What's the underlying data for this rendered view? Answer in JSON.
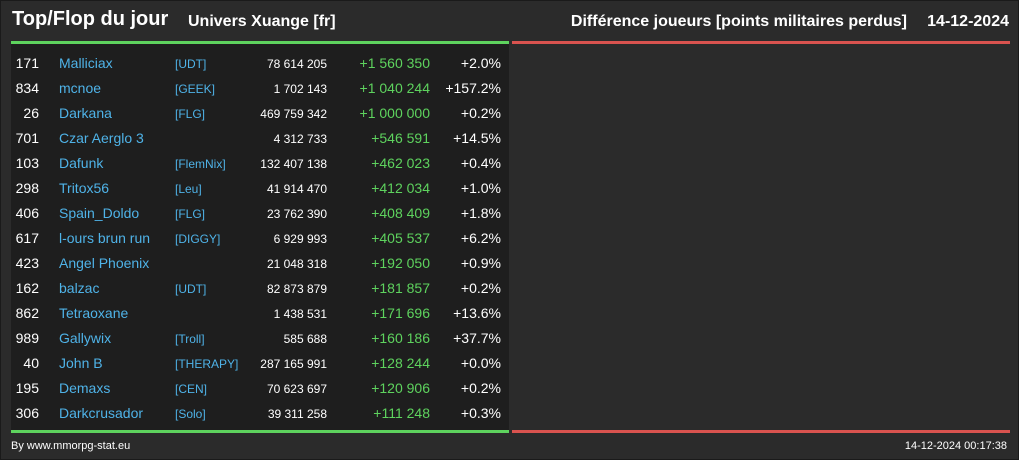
{
  "header": {
    "title": "Top/Flop du jour",
    "universe": "Univers Xuange [fr]",
    "metric": "Différence joueurs [points militaires perdus]",
    "date": "14-12-2024"
  },
  "colors": {
    "positive": "#5ed35e",
    "negative": "#d9534f",
    "link": "#4fb3e8",
    "background": "#2b2b2b"
  },
  "rows": [
    {
      "rank": "171",
      "name": "Malliciax",
      "alliance": "[UDT]",
      "total": "78 614 205",
      "diff": "+1 560 350",
      "pct": "+2.0%"
    },
    {
      "rank": "834",
      "name": "mcnoe",
      "alliance": "[GEEK]",
      "total": "1 702 143",
      "diff": "+1 040 244",
      "pct": "+157.2%"
    },
    {
      "rank": "26",
      "name": "Darkana",
      "alliance": "[FLG]",
      "total": "469 759 342",
      "diff": "+1 000 000",
      "pct": "+0.2%"
    },
    {
      "rank": "701",
      "name": "Czar Aerglo 3",
      "alliance": "",
      "total": "4 312 733",
      "diff": "+546 591",
      "pct": "+14.5%"
    },
    {
      "rank": "103",
      "name": "Dafunk",
      "alliance": "[FlemNix]",
      "total": "132 407 138",
      "diff": "+462 023",
      "pct": "+0.4%"
    },
    {
      "rank": "298",
      "name": "Tritox56",
      "alliance": "[Leu]",
      "total": "41 914 470",
      "diff": "+412 034",
      "pct": "+1.0%"
    },
    {
      "rank": "406",
      "name": "Spain_Doldo",
      "alliance": "[FLG]",
      "total": "23 762 390",
      "diff": "+408 409",
      "pct": "+1.8%"
    },
    {
      "rank": "617",
      "name": "l-ours brun run",
      "alliance": "[DIGGY]",
      "total": "6 929 993",
      "diff": "+405 537",
      "pct": "+6.2%"
    },
    {
      "rank": "423",
      "name": "Angel Phoenix",
      "alliance": "",
      "total": "21 048 318",
      "diff": "+192 050",
      "pct": "+0.9%"
    },
    {
      "rank": "162",
      "name": "balzac",
      "alliance": "[UDT]",
      "total": "82 873 879",
      "diff": "+181 857",
      "pct": "+0.2%"
    },
    {
      "rank": "862",
      "name": "Tetraoxane",
      "alliance": "",
      "total": "1 438 531",
      "diff": "+171 696",
      "pct": "+13.6%"
    },
    {
      "rank": "989",
      "name": "Gallywix",
      "alliance": "[Troll]",
      "total": "585 688",
      "diff": "+160 186",
      "pct": "+37.7%"
    },
    {
      "rank": "40",
      "name": "John B",
      "alliance": "[THERAPY]",
      "total": "287 165 991",
      "diff": "+128 244",
      "pct": "+0.0%"
    },
    {
      "rank": "195",
      "name": "Demaxs",
      "alliance": "[CEN]",
      "total": "70 623 697",
      "diff": "+120 906",
      "pct": "+0.2%"
    },
    {
      "rank": "306",
      "name": "Darkcrusador",
      "alliance": "[Solo]",
      "total": "39 311 258",
      "diff": "+111 248",
      "pct": "+0.3%"
    }
  ],
  "footer": {
    "credit": "By www.mmorpg-stat.eu",
    "timestamp": "14-12-2024 00:17:38"
  }
}
